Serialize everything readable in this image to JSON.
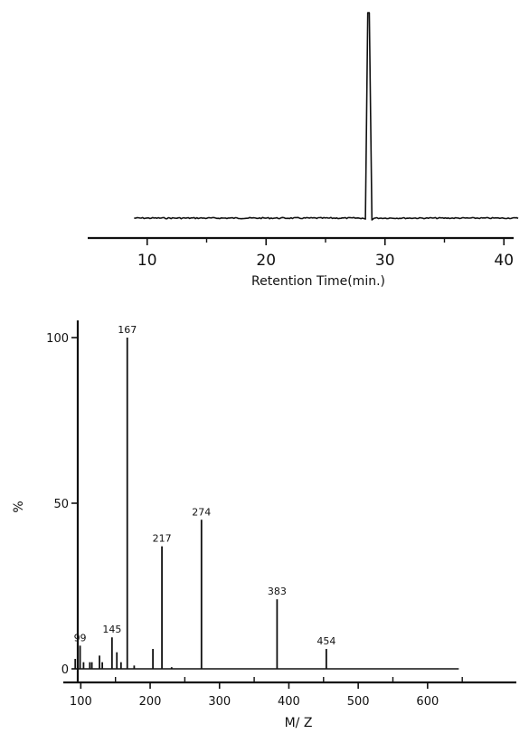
{
  "chart_data": [
    {
      "type": "line",
      "xlabel": "Retention Time(min.)",
      "ylabel": "",
      "xlim": [
        5,
        42
      ],
      "ylim": [
        0,
        100
      ],
      "x_ticks": [
        {
          "value": 10,
          "label": "10"
        },
        {
          "value": 20,
          "label": "20"
        },
        {
          "value": 30,
          "label": "30"
        },
        {
          "value": 40,
          "label": "40"
        }
      ],
      "x_minor_ticks": [
        15,
        25,
        35
      ],
      "x_baseline_start": 8.9,
      "x_baseline_end": 41.3,
      "baseline_level": 1.5,
      "peak": {
        "x": 28.6,
        "y": 100
      }
    },
    {
      "type": "bar",
      "xlabel": "M/ Z",
      "ylabel": "%",
      "xlim": [
        60,
        660
      ],
      "ylim": [
        0,
        100
      ],
      "x_ticks": [
        {
          "value": 100,
          "label": "100"
        },
        {
          "value": 200,
          "label": "200"
        },
        {
          "value": 300,
          "label": "300"
        },
        {
          "value": 400,
          "label": "400"
        },
        {
          "value": 500,
          "label": "500"
        },
        {
          "value": 600,
          "label": "600"
        }
      ],
      "x_minor_ticks": [
        150,
        250,
        350,
        450,
        550,
        650
      ],
      "y_ticks": [
        {
          "value": 0,
          "label": "0"
        },
        {
          "value": 50,
          "label": "50"
        },
        {
          "value": 100,
          "label": "100"
        }
      ],
      "bars": [
        {
          "x": 92,
          "y": 3,
          "label": ""
        },
        {
          "x": 99,
          "y": 7,
          "label": "99"
        },
        {
          "x": 104,
          "y": 2,
          "label": ""
        },
        {
          "x": 113,
          "y": 2,
          "label": ""
        },
        {
          "x": 116,
          "y": 2,
          "label": ""
        },
        {
          "x": 127,
          "y": 4,
          "label": ""
        },
        {
          "x": 131,
          "y": 2,
          "label": ""
        },
        {
          "x": 145,
          "y": 9.5,
          "label": "145"
        },
        {
          "x": 152,
          "y": 5,
          "label": ""
        },
        {
          "x": 158,
          "y": 2,
          "label": ""
        },
        {
          "x": 167,
          "y": 100,
          "label": "167"
        },
        {
          "x": 177,
          "y": 1,
          "label": ""
        },
        {
          "x": 204,
          "y": 6,
          "label": ""
        },
        {
          "x": 217,
          "y": 37,
          "label": "217"
        },
        {
          "x": 231,
          "y": 0.5,
          "label": ""
        },
        {
          "x": 274,
          "y": 45,
          "label": "274"
        },
        {
          "x": 383,
          "y": 21,
          "label": "383"
        },
        {
          "x": 454,
          "y": 6,
          "label": "454"
        }
      ]
    }
  ]
}
